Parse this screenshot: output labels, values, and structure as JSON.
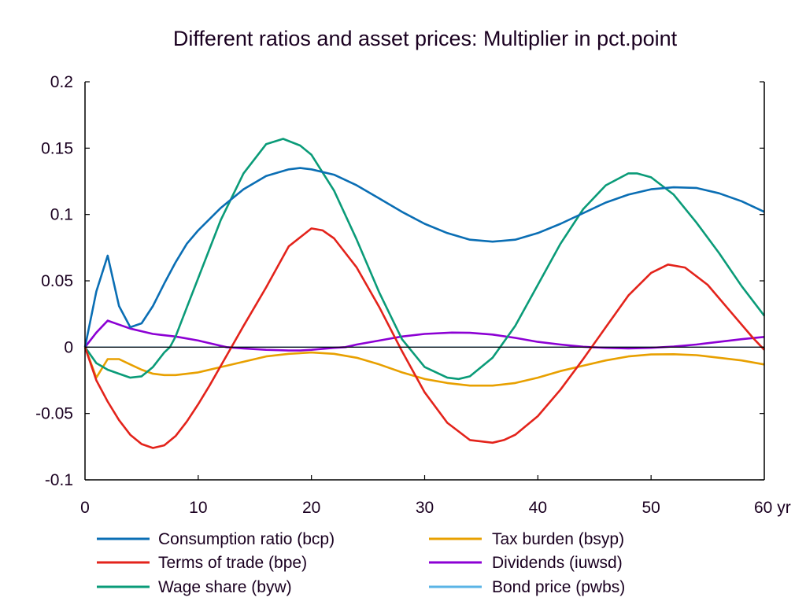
{
  "chart_data": {
    "type": "line",
    "title": "Different ratios and asset prices: Multiplier in pct.point",
    "xlabel": "",
    "ylabel": "",
    "x_unit_label": "yr",
    "xlim": [
      0,
      60
    ],
    "ylim": [
      -0.1,
      0.2
    ],
    "x_ticks": [
      0,
      10,
      20,
      30,
      40,
      50,
      60
    ],
    "x_tick_labels": [
      "0",
      "10",
      "20",
      "30",
      "40",
      "50",
      "60 yr"
    ],
    "y_ticks": [
      -0.1,
      -0.05,
      0,
      0.05,
      0.1,
      0.15,
      0.2
    ],
    "y_tick_labels": [
      "-0.1",
      "-0.05",
      "0",
      "0.05",
      "0.1",
      "0.15",
      "0.2"
    ],
    "grid": false,
    "legend_position": "bottom",
    "series": [
      {
        "name": "Consumption ratio (bcp)",
        "color": "#0a6eb4",
        "x": [
          0,
          1,
          2,
          3,
          4,
          5,
          6,
          7,
          8,
          9,
          10,
          12,
          14,
          16,
          18,
          19,
          20,
          22,
          24,
          26,
          28,
          30,
          32,
          34,
          36,
          38,
          40,
          42,
          44,
          46,
          48,
          50,
          52,
          54,
          56,
          58,
          60
        ],
        "y": [
          0,
          0.042,
          0.069,
          0.031,
          0.015,
          0.018,
          0.031,
          0.048,
          0.064,
          0.078,
          0.088,
          0.105,
          0.119,
          0.129,
          0.134,
          0.135,
          0.134,
          0.13,
          0.122,
          0.112,
          0.102,
          0.093,
          0.086,
          0.081,
          0.0795,
          0.081,
          0.086,
          0.093,
          0.101,
          0.109,
          0.115,
          0.119,
          0.1205,
          0.12,
          0.116,
          0.11,
          0.102
        ]
      },
      {
        "name": "Terms of trade (bpe)",
        "color": "#e3231b",
        "x": [
          0,
          1,
          2,
          3,
          4,
          5,
          6,
          7,
          8,
          9,
          10,
          11,
          12,
          13,
          14,
          16,
          18,
          20,
          21,
          22,
          24,
          26,
          28,
          30,
          32,
          34,
          36,
          37,
          38,
          40,
          42,
          44,
          46,
          48,
          50,
          51.5,
          53,
          55,
          57,
          59,
          60
        ],
        "y": [
          0,
          -0.025,
          -0.041,
          -0.055,
          -0.066,
          -0.073,
          -0.076,
          -0.074,
          -0.067,
          -0.056,
          -0.043,
          -0.029,
          -0.014,
          0.001,
          0.016,
          0.045,
          0.076,
          0.0895,
          0.088,
          0.082,
          0.06,
          0.03,
          -0.003,
          -0.034,
          -0.057,
          -0.07,
          -0.072,
          -0.07,
          -0.066,
          -0.052,
          -0.032,
          -0.009,
          0.015,
          0.039,
          0.056,
          0.0623,
          0.06,
          0.047,
          0.027,
          0.007,
          -0.002
        ]
      },
      {
        "name": "Wage share (byw)",
        "color": "#0a9b78",
        "x": [
          0,
          1,
          2,
          3,
          4,
          5,
          6,
          7,
          7.5,
          8,
          9,
          10,
          12,
          14,
          16,
          17.5,
          19,
          20,
          22,
          24,
          26,
          28,
          30,
          32,
          33,
          34,
          36,
          38,
          40,
          42,
          44,
          46,
          48,
          48.75,
          50,
          52,
          54,
          56,
          58,
          60
        ],
        "y": [
          0,
          -0.012,
          -0.017,
          -0.02,
          -0.023,
          -0.022,
          -0.015,
          -0.004,
          0,
          0.008,
          0.03,
          0.052,
          0.096,
          0.131,
          0.153,
          0.157,
          0.152,
          0.145,
          0.118,
          0.081,
          0.041,
          0.006,
          -0.015,
          -0.023,
          -0.024,
          -0.022,
          -0.008,
          0.016,
          0.047,
          0.078,
          0.104,
          0.122,
          0.131,
          0.131,
          0.128,
          0.115,
          0.094,
          0.071,
          0.046,
          0.0237
        ]
      },
      {
        "name": "Tax burden (bsyp)",
        "color": "#e8a000",
        "x": [
          0,
          1,
          2,
          3,
          4,
          5,
          6,
          7,
          8,
          10,
          12,
          14,
          16,
          18,
          20,
          22,
          24,
          26,
          28,
          30,
          32,
          34,
          36,
          38,
          40,
          42,
          44,
          46,
          48,
          50,
          52,
          54,
          56,
          58,
          60
        ],
        "y": [
          0,
          -0.023,
          -0.009,
          -0.009,
          -0.013,
          -0.017,
          -0.02,
          -0.021,
          -0.021,
          -0.019,
          -0.015,
          -0.011,
          -0.007,
          -0.005,
          -0.004,
          -0.005,
          -0.008,
          -0.013,
          -0.019,
          -0.024,
          -0.027,
          -0.029,
          -0.029,
          -0.027,
          -0.023,
          -0.018,
          -0.014,
          -0.01,
          -0.007,
          -0.0055,
          -0.0053,
          -0.006,
          -0.008,
          -0.01,
          -0.013
        ]
      },
      {
        "name": "Dividends (iuwsd)",
        "color": "#8c00d4",
        "x": [
          0,
          1,
          2,
          3,
          4,
          5,
          6,
          7,
          8,
          10,
          12,
          12.5,
          14,
          16,
          18,
          19,
          20,
          22,
          23,
          24,
          26,
          28,
          30,
          32.4,
          34,
          36,
          38,
          40,
          42,
          44,
          46,
          48,
          50,
          52,
          54,
          56,
          58,
          60
        ],
        "y": [
          0,
          0.011,
          0.02,
          0.017,
          0.014,
          0.012,
          0.01,
          0.009,
          0.008,
          0.005,
          0.001,
          0,
          -0.001,
          -0.002,
          -0.0025,
          -0.0025,
          -0.002,
          -0.0005,
          0,
          0.002,
          0.005,
          0.008,
          0.01,
          0.011,
          0.0108,
          0.0095,
          0.007,
          0.004,
          0.002,
          0.0003,
          -0.0005,
          -0.001,
          -0.0005,
          0.0005,
          0.002,
          0.004,
          0.006,
          0.0077
        ]
      },
      {
        "name": "Bond price (pwbs)",
        "color": "#5ab4e6",
        "x": [
          0,
          60
        ],
        "y": [
          0,
          0
        ]
      }
    ]
  }
}
